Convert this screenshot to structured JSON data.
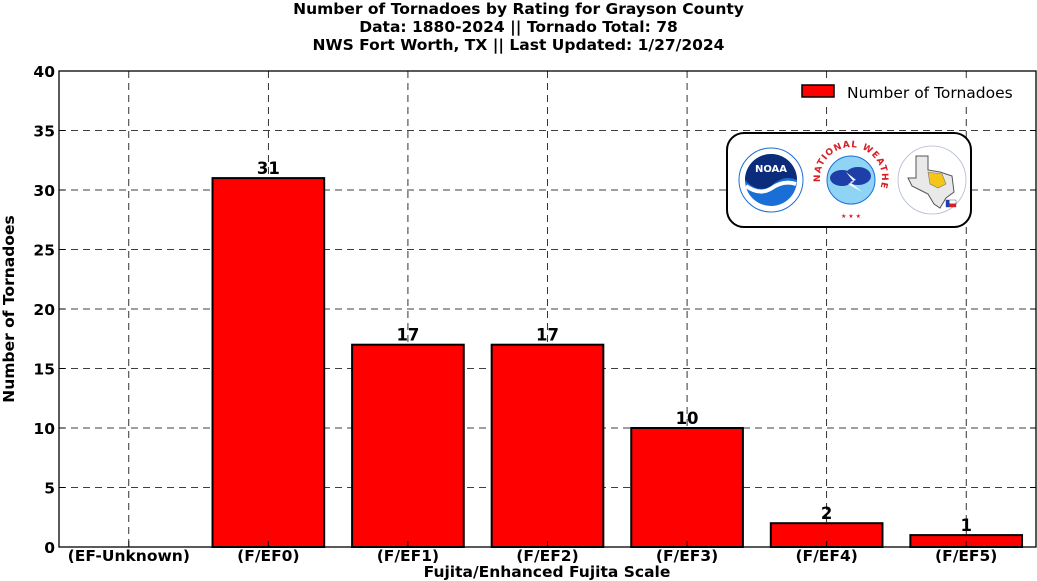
{
  "chart_data": {
    "type": "bar",
    "title_lines": [
      "Number of Tornadoes by Rating for Grayson County",
      "Data: 1880-2024 || Tornado Total: 78",
      "NWS Fort Worth, TX || Last Updated: 1/27/2024"
    ],
    "xlabel": "Fujita/Enhanced Fujita Scale",
    "ylabel": "Number of Tornadoes",
    "categories": [
      "(EF-Unknown)",
      "(F/EF0)",
      "(F/EF1)",
      "(F/EF2)",
      "(F/EF3)",
      "(F/EF4)",
      "(F/EF5)"
    ],
    "series": [
      {
        "name": "Number of Tornadoes",
        "values": [
          0,
          31,
          17,
          17,
          10,
          2,
          1
        ],
        "data_labels": [
          "",
          "31",
          "17",
          "17",
          "10",
          "2",
          "1"
        ],
        "color": "#ff0000"
      }
    ],
    "ylim": [
      0,
      40
    ],
    "yticks": [
      0,
      5,
      10,
      15,
      20,
      25,
      30,
      35,
      40
    ],
    "grid": true,
    "legend_position": "top-right"
  },
  "logos": {
    "noara_text": "NOAA",
    "nws_text": "NATIONAL WEATHER SERVICE"
  },
  "colors": {
    "bar": "#ff0000",
    "noaa_blue": "#1a6fd6",
    "nws_red": "#d61f26",
    "texas_fill": "#f5c518"
  }
}
